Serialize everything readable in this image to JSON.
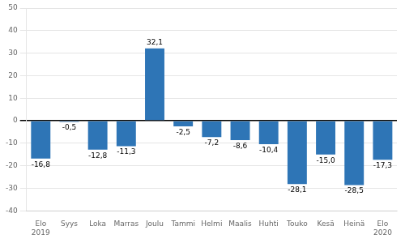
{
  "chart_data": {
    "type": "bar",
    "categories": [
      "Elo\n2019",
      "Syys",
      "Loka",
      "Marras",
      "Joulu",
      "Tammi",
      "Helmi",
      "Maalis",
      "Huhti",
      "Touko",
      "Kesä",
      "Heinä",
      "Elo\n2020"
    ],
    "values": [
      -16.8,
      -0.5,
      -12.8,
      -11.3,
      32.1,
      -2.5,
      -7.2,
      -8.6,
      -10.4,
      -28.1,
      -15.0,
      -28.5,
      -17.3
    ],
    "value_labels": [
      "-16,8",
      "-0,5",
      "-12,8",
      "-11,3",
      "32,1",
      "-2,5",
      "-7,2",
      "-8,6",
      "-10,4",
      "-28,1",
      "-15,0",
      "-28,5",
      "-17,3"
    ],
    "color": "#2E75B6",
    "ylim": [
      -40,
      50
    ],
    "yticks": [
      -40,
      -30,
      -20,
      -10,
      0,
      10,
      20,
      30,
      40,
      50
    ],
    "grid": true,
    "data_labels": true
  }
}
